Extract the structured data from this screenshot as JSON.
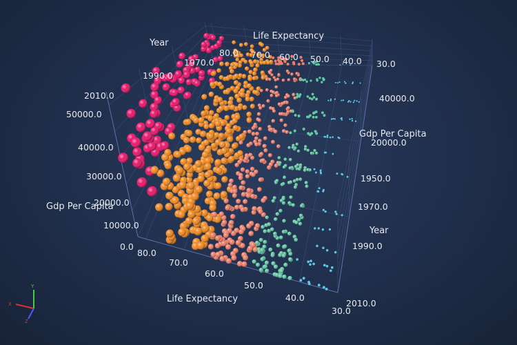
{
  "chart_data": {
    "type": "scatter",
    "axes": {
      "life_expectancy": {
        "label": "Life Expectancy",
        "ticks_front": [
          "80.0",
          "70.0",
          "60.0",
          "50.0",
          "40.0",
          "30.0"
        ],
        "ticks_back": [
          "80.0",
          "70.0",
          "60.0",
          "50.0",
          "40.0",
          "30.0"
        ],
        "range": [
          30,
          82
        ]
      },
      "gdp_per_capita": {
        "label": "Gdp Per Capita",
        "ticks_left": [
          "0.0",
          "10000.0",
          "20000.0",
          "30000.0",
          "40000.0",
          "50000.0"
        ],
        "ticks_right": [
          "20000.0",
          "40000.0"
        ],
        "range": [
          0,
          55000
        ]
      },
      "year": {
        "label": "Year",
        "ticks_right": [
          "1950.0",
          "1970.0",
          "1990.0",
          "2010.0"
        ],
        "ticks_top": [
          "1970.0",
          "1990.0",
          "2010.0"
        ],
        "range": [
          1950,
          2010
        ]
      }
    },
    "series": [
      {
        "color": "#e8186c",
        "life_range": [
          75,
          83
        ],
        "gdp_range": [
          20000,
          52000
        ]
      },
      {
        "color": "#f08a24",
        "life_range": [
          63,
          75
        ],
        "gdp_range": [
          2000,
          32000
        ]
      },
      {
        "color": "#ec7f6a",
        "life_range": [
          52,
          63
        ],
        "gdp_range": [
          500,
          14000
        ]
      },
      {
        "color": "#63c7a2",
        "life_range": [
          42,
          52
        ],
        "gdp_range": [
          300,
          7000
        ]
      },
      {
        "color": "#5fc7e6",
        "life_range": [
          32,
          42
        ],
        "gdp_range": [
          200,
          3000
        ]
      }
    ],
    "grid": true
  },
  "colors": {
    "background": "#1f2e4a",
    "grid": "#3b4f7a",
    "axis_x": "#e03030",
    "axis_y": "#40d040",
    "axis_z": "#4060ff"
  },
  "gizmo": {
    "x": "X",
    "y": "Y",
    "z": "Z"
  }
}
